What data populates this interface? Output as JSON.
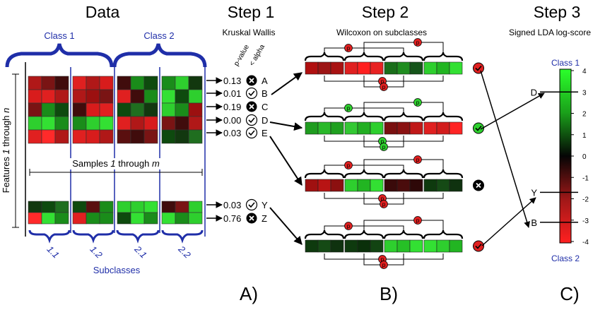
{
  "headers": {
    "data": "Data",
    "step1": "Step 1",
    "step2": "Step 2",
    "step3": "Step 3"
  },
  "subtitles": {
    "step1": "Kruskal Wallis",
    "step2": "Wilcoxon on subclasses",
    "step3": "Signed LDA log-score"
  },
  "classes": {
    "class1": "Class 1",
    "class2": "Class 2"
  },
  "axis_labels": {
    "features_prefix": "Features ",
    "features_one": "1",
    "features_mid": " through ",
    "features_n": "n",
    "samples_prefix": "Samples ",
    "samples_one": "1",
    "samples_mid": " through ",
    "samples_m": "m"
  },
  "subclasses": {
    "label": "Subclasses",
    "items": [
      "1.1",
      "1.2",
      "2.1",
      "2.2"
    ]
  },
  "column_headers": {
    "pvalue": "p-value",
    "alpha": "< alpha"
  },
  "kruskal": [
    {
      "pvalue": "0.13",
      "pass": false,
      "feature": "A"
    },
    {
      "pvalue": "0.01",
      "pass": true,
      "feature": "B"
    },
    {
      "pvalue": "0.19",
      "pass": false,
      "feature": "C"
    },
    {
      "pvalue": "0.00",
      "pass": true,
      "feature": "D"
    },
    {
      "pvalue": "0.03",
      "pass": true,
      "feature": "E"
    },
    {
      "pvalue": "0.03",
      "pass": true,
      "feature": "Y"
    },
    {
      "pvalue": "0.76",
      "pass": false,
      "feature": "Z"
    }
  ],
  "wilcoxon": [
    {
      "result": "fail-red"
    },
    {
      "result": "pass-green"
    },
    {
      "result": "fail-black"
    },
    {
      "result": "fail-red"
    }
  ],
  "wilcoxon_p_symbol": "p",
  "lda_scale": {
    "top_label": "Class 1",
    "bottom_label": "Class 2",
    "ticks": [
      "4",
      "3",
      "2",
      "1",
      "0",
      "-1",
      "-2",
      "-3",
      "-4"
    ]
  },
  "lda_features": [
    {
      "feature": "D",
      "score": 3.0
    },
    {
      "feature": "Y",
      "score": -1.7
    },
    {
      "feature": "B",
      "score": -3.1
    }
  ],
  "panel_labels": {
    "a": "A)",
    "b": "B)",
    "c": "C)"
  },
  "colors": {
    "blue": "#1f2ea8",
    "green": "#2ecf2e",
    "red": "#e02020",
    "black": "#000000"
  }
}
